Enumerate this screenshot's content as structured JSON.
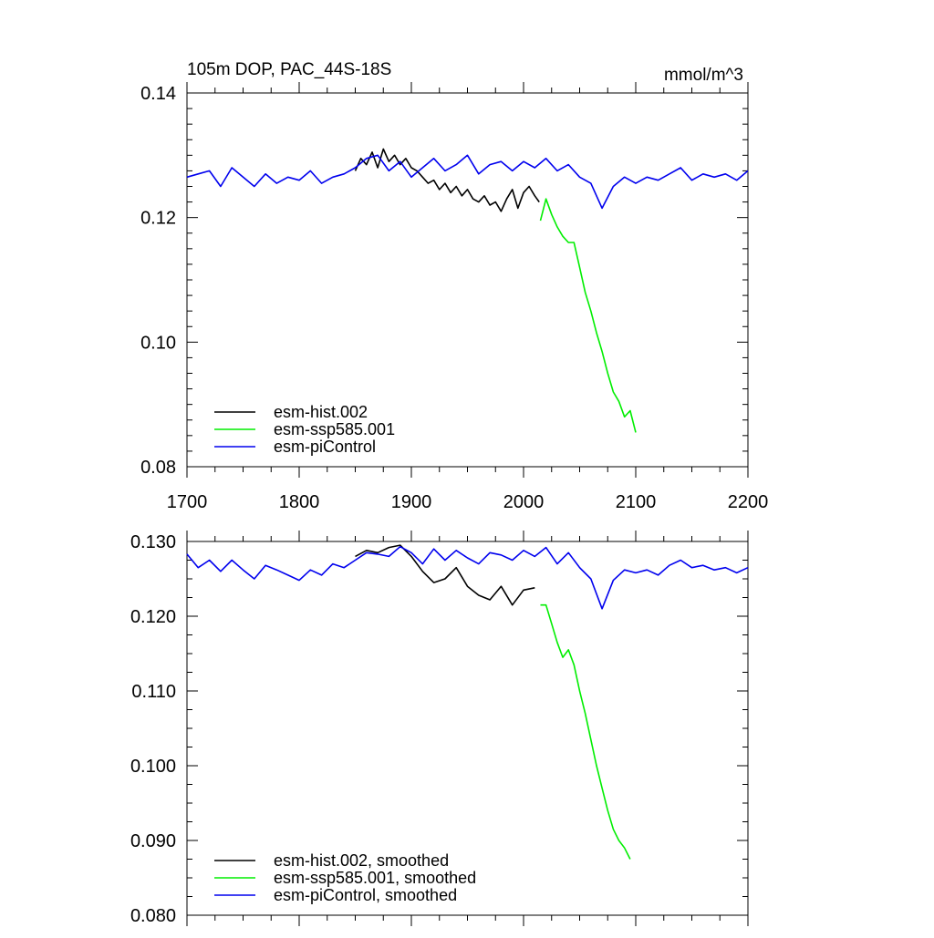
{
  "chart_data": [
    {
      "type": "line",
      "title": "105m DOP, PAC_44S-18S",
      "units_label": "mmol/m^3",
      "xlabel": "",
      "ylabel": "",
      "xlim": [
        1700,
        2200
      ],
      "ylim": [
        0.08,
        0.14
      ],
      "x_ticks": [
        1700,
        1800,
        1900,
        2000,
        2100,
        2200
      ],
      "x_tick_labels": [
        "1700",
        "1800",
        "1900",
        "2000",
        "2100",
        "2200"
      ],
      "y_ticks": [
        0.08,
        0.1,
        0.12,
        0.14
      ],
      "y_tick_labels": [
        "0.08",
        "0.10",
        "0.12",
        "0.14"
      ],
      "grid": false,
      "legend_position": "bottom-left",
      "series": [
        {
          "name": "esm-hist.002",
          "color": "#000000",
          "x": [
            1850,
            1855,
            1860,
            1865,
            1870,
            1875,
            1880,
            1885,
            1890,
            1895,
            1900,
            1905,
            1910,
            1915,
            1920,
            1925,
            1930,
            1935,
            1940,
            1945,
            1950,
            1955,
            1960,
            1965,
            1970,
            1975,
            1980,
            1985,
            1990,
            1995,
            2000,
            2005,
            2010,
            2014
          ],
          "y": [
            0.1275,
            0.1295,
            0.1285,
            0.1305,
            0.128,
            0.131,
            0.129,
            0.13,
            0.1285,
            0.1295,
            0.128,
            0.1275,
            0.1265,
            0.1255,
            0.126,
            0.1245,
            0.1255,
            0.124,
            0.125,
            0.1235,
            0.1245,
            0.123,
            0.1225,
            0.1235,
            0.122,
            0.1225,
            0.121,
            0.123,
            0.1245,
            0.1215,
            0.124,
            0.125,
            0.1235,
            0.1225
          ]
        },
        {
          "name": "esm-ssp585.001",
          "color": "#00ee00",
          "x": [
            2015,
            2020,
            2025,
            2030,
            2035,
            2040,
            2045,
            2050,
            2055,
            2060,
            2065,
            2070,
            2075,
            2080,
            2085,
            2090,
            2095,
            2100
          ],
          "y": [
            0.1195,
            0.123,
            0.1205,
            0.1185,
            0.117,
            0.116,
            0.116,
            0.112,
            0.108,
            0.105,
            0.1015,
            0.0985,
            0.095,
            0.092,
            0.0905,
            0.088,
            0.089,
            0.0855
          ]
        },
        {
          "name": "esm-piControl",
          "color": "#0000ee",
          "x": [
            1700,
            1710,
            1720,
            1730,
            1740,
            1750,
            1760,
            1770,
            1780,
            1790,
            1800,
            1810,
            1820,
            1830,
            1840,
            1850,
            1860,
            1870,
            1880,
            1890,
            1900,
            1910,
            1920,
            1930,
            1940,
            1950,
            1960,
            1970,
            1980,
            1990,
            2000,
            2010,
            2020,
            2030,
            2040,
            2050,
            2060,
            2070,
            2080,
            2090,
            2100,
            2110,
            2120,
            2130,
            2140,
            2150,
            2160,
            2170,
            2180,
            2190,
            2200
          ],
          "y": [
            0.1265,
            0.127,
            0.1275,
            0.125,
            0.128,
            0.1265,
            0.125,
            0.127,
            0.1255,
            0.1265,
            0.126,
            0.1275,
            0.1255,
            0.1265,
            0.127,
            0.128,
            0.1295,
            0.13,
            0.1275,
            0.129,
            0.1265,
            0.128,
            0.1295,
            0.1275,
            0.1285,
            0.13,
            0.127,
            0.1285,
            0.129,
            0.1275,
            0.129,
            0.128,
            0.1295,
            0.1275,
            0.1285,
            0.1265,
            0.1255,
            0.1215,
            0.125,
            0.1265,
            0.1255,
            0.1265,
            0.126,
            0.127,
            0.128,
            0.126,
            0.127,
            0.1265,
            0.127,
            0.126,
            0.1275
          ]
        }
      ]
    },
    {
      "type": "line",
      "title": "",
      "xlabel": "",
      "ylabel": "",
      "xlim": [
        1700,
        2200
      ],
      "ylim": [
        0.08,
        0.13
      ],
      "x_ticks": [
        1700,
        1800,
        1900,
        2000,
        2100,
        2200
      ],
      "y_ticks": [
        0.08,
        0.09,
        0.1,
        0.11,
        0.12,
        0.13
      ],
      "y_tick_labels": [
        "0.080",
        "0.090",
        "0.100",
        "0.110",
        "0.120",
        "0.130"
      ],
      "grid": false,
      "legend_position": "bottom-left",
      "series": [
        {
          "name": "esm-hist.002, smoothed",
          "color": "#000000",
          "x": [
            1850,
            1860,
            1870,
            1880,
            1890,
            1900,
            1910,
            1920,
            1930,
            1940,
            1950,
            1960,
            1970,
            1980,
            1990,
            2000,
            2010
          ],
          "y": [
            0.128,
            0.1288,
            0.1285,
            0.1292,
            0.1295,
            0.128,
            0.126,
            0.1245,
            0.125,
            0.1265,
            0.124,
            0.1228,
            0.1222,
            0.124,
            0.1215,
            0.1235,
            0.1238
          ]
        },
        {
          "name": "esm-ssp585.001, smoothed",
          "color": "#00ee00",
          "x": [
            2015,
            2020,
            2025,
            2030,
            2035,
            2040,
            2045,
            2050,
            2055,
            2060,
            2065,
            2070,
            2075,
            2080,
            2085,
            2090,
            2095
          ],
          "y": [
            0.1215,
            0.1215,
            0.119,
            0.1165,
            0.1145,
            0.1155,
            0.1135,
            0.11,
            0.107,
            0.1035,
            0.1,
            0.097,
            0.094,
            0.0915,
            0.09,
            0.089,
            0.0875
          ]
        },
        {
          "name": "esm-piControl, smoothed",
          "color": "#0000ee",
          "x": [
            1700,
            1710,
            1720,
            1730,
            1740,
            1750,
            1760,
            1770,
            1780,
            1790,
            1800,
            1810,
            1820,
            1830,
            1840,
            1850,
            1860,
            1870,
            1880,
            1890,
            1900,
            1910,
            1920,
            1930,
            1940,
            1950,
            1960,
            1970,
            1980,
            1990,
            2000,
            2010,
            2020,
            2030,
            2040,
            2050,
            2060,
            2070,
            2080,
            2090,
            2100,
            2110,
            2120,
            2130,
            2140,
            2150,
            2160,
            2170,
            2180,
            2190,
            2200
          ],
          "y": [
            0.1283,
            0.1265,
            0.1275,
            0.126,
            0.1275,
            0.1262,
            0.125,
            0.1268,
            0.1262,
            0.1255,
            0.1248,
            0.1262,
            0.1255,
            0.127,
            0.1265,
            0.1275,
            0.1285,
            0.1283,
            0.128,
            0.1293,
            0.1285,
            0.127,
            0.129,
            0.1275,
            0.1288,
            0.1278,
            0.127,
            0.1285,
            0.1282,
            0.1275,
            0.1288,
            0.128,
            0.1292,
            0.127,
            0.1285,
            0.1265,
            0.125,
            0.121,
            0.1248,
            0.1262,
            0.1258,
            0.1262,
            0.1255,
            0.1268,
            0.1275,
            0.1265,
            0.1268,
            0.1262,
            0.1265,
            0.1258,
            0.1265
          ]
        }
      ]
    }
  ]
}
